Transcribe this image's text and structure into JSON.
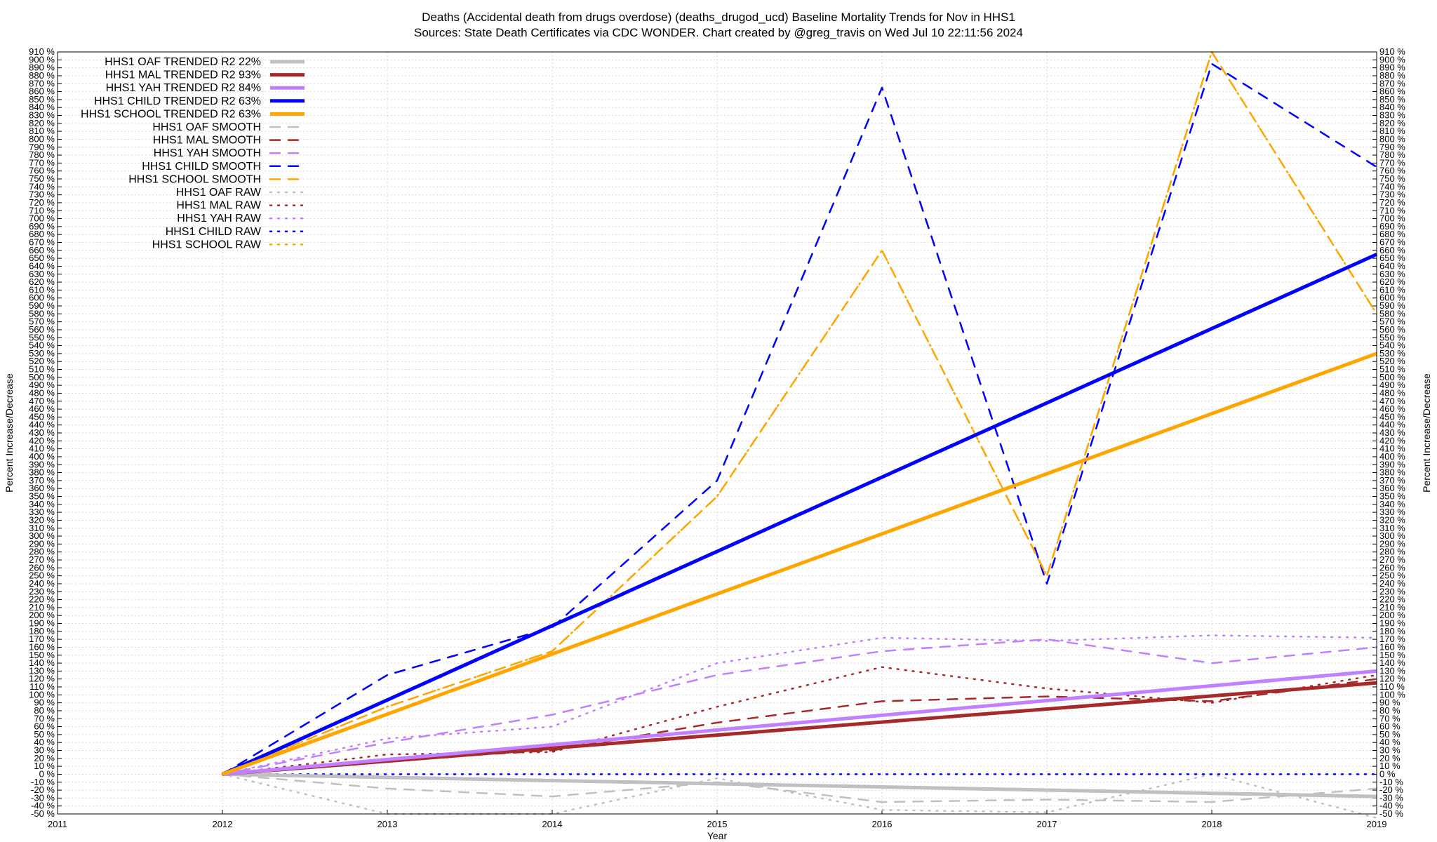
{
  "chart_data": {
    "type": "line",
    "title_line1": "Deaths (Accidental death from drugs overdose) (deaths_drugod_ucd)  Baseline Mortality Trends for Nov in HHS1",
    "title_line2": "Sources: State Death Certificates via CDC WONDER.                Chart created by @greg_travis on Wed Jul 10 22:11:56 2024",
    "xlabel": "Year",
    "ylabel": "Percent Increase/Decrease",
    "ylabel_right": "Percent Increase/Decrease",
    "xlim": [
      2011,
      2019
    ],
    "ylim": [
      -50,
      910
    ],
    "x_ticks": [
      2011,
      2012,
      2013,
      2014,
      2015,
      2016,
      2017,
      2018,
      2019
    ],
    "y_tick_step": 10,
    "y_tick_suffix": " %",
    "grid": true,
    "legend_position": "top-left",
    "colors": {
      "oaf": "#c0c0c0",
      "mal": "#a52a2a",
      "yah": "#c080ff",
      "child": "#0000ff",
      "school": "#ffa500"
    },
    "series": [
      {
        "name": "HHS1 OAF TRENDED R2",
        "r2": "22%",
        "kind": "trend",
        "color_key": "oaf",
        "x": [
          2012,
          2019
        ],
        "y": [
          0,
          -28
        ]
      },
      {
        "name": "HHS1 MAL TRENDED R2",
        "r2": "93%",
        "kind": "trend",
        "color_key": "mal",
        "x": [
          2012,
          2019
        ],
        "y": [
          0,
          115
        ]
      },
      {
        "name": "HHS1 YAH TRENDED R2",
        "r2": "84%",
        "kind": "trend",
        "color_key": "yah",
        "x": [
          2012,
          2019
        ],
        "y": [
          0,
          130
        ]
      },
      {
        "name": "HHS1 CHILD TRENDED R2",
        "r2": "63%",
        "kind": "trend",
        "color_key": "child",
        "x": [
          2012,
          2019
        ],
        "y": [
          0,
          655
        ]
      },
      {
        "name": "HHS1 SCHOOL TRENDED R2",
        "r2": "63%",
        "kind": "trend",
        "color_key": "school",
        "x": [
          2012,
          2019
        ],
        "y": [
          0,
          530
        ]
      },
      {
        "name": "HHS1 OAF SMOOTH",
        "r2": "",
        "kind": "smooth",
        "color_key": "oaf",
        "x": [
          2012,
          2013,
          2014,
          2015,
          2016,
          2017,
          2018,
          2019
        ],
        "y": [
          0,
          -18,
          -28,
          -10,
          -35,
          -32,
          -35,
          -18
        ]
      },
      {
        "name": "HHS1 MAL SMOOTH",
        "r2": "",
        "kind": "smooth",
        "color_key": "mal",
        "x": [
          2012,
          2013,
          2014,
          2015,
          2016,
          2017,
          2018,
          2019
        ],
        "y": [
          0,
          18,
          30,
          65,
          92,
          98,
          92,
          120
        ]
      },
      {
        "name": "HHS1 YAH SMOOTH",
        "r2": "",
        "kind": "smooth",
        "color_key": "yah",
        "x": [
          2012,
          2013,
          2014,
          2015,
          2016,
          2017,
          2018,
          2019
        ],
        "y": [
          0,
          40,
          75,
          125,
          155,
          170,
          140,
          160
        ]
      },
      {
        "name": "HHS1 CHILD SMOOTH",
        "r2": "",
        "kind": "smooth",
        "color_key": "child",
        "x": [
          2012,
          2013,
          2014,
          2015,
          2016,
          2017,
          2018,
          2019
        ],
        "y": [
          0,
          125,
          185,
          370,
          865,
          240,
          895,
          765
        ]
      },
      {
        "name": "HHS1 SCHOOL SMOOTH",
        "r2": "",
        "kind": "smooth",
        "color_key": "school",
        "x": [
          2012,
          2013,
          2014,
          2015,
          2016,
          2017,
          2018,
          2019
        ],
        "y": [
          0,
          85,
          155,
          350,
          660,
          250,
          910,
          580
        ]
      },
      {
        "name": "HHS1 OAF RAW",
        "r2": "",
        "kind": "raw",
        "color_key": "oaf",
        "x": [
          2012,
          2013,
          2014,
          2015,
          2016,
          2017,
          2018,
          2019
        ],
        "y": [
          0,
          -50,
          -50,
          -5,
          -45,
          -48,
          0,
          -55
        ]
      },
      {
        "name": "HHS1 MAL RAW",
        "r2": "",
        "kind": "raw",
        "color_key": "mal",
        "x": [
          2012,
          2013,
          2014,
          2015,
          2016,
          2017,
          2018,
          2019
        ],
        "y": [
          0,
          25,
          28,
          85,
          135,
          108,
          90,
          125
        ]
      },
      {
        "name": "HHS1 YAH RAW",
        "r2": "",
        "kind": "raw",
        "color_key": "yah",
        "x": [
          2012,
          2013,
          2014,
          2015,
          2016,
          2017,
          2018,
          2019
        ],
        "y": [
          0,
          45,
          60,
          140,
          172,
          168,
          175,
          172
        ]
      },
      {
        "name": "HHS1 CHILD RAW",
        "r2": "",
        "kind": "raw",
        "color_key": "child",
        "x": [
          2012,
          2013,
          2014,
          2015,
          2016,
          2017,
          2018,
          2019
        ],
        "y": [
          0,
          0,
          0,
          0,
          0,
          0,
          0,
          0
        ]
      },
      {
        "name": "HHS1 SCHOOL RAW",
        "r2": "",
        "kind": "raw",
        "color_key": "school",
        "x": [
          2012,
          2013,
          2014,
          2015,
          2016,
          2017,
          2018,
          2019
        ],
        "y": [
          0,
          85,
          155,
          350,
          660,
          250,
          910,
          580
        ]
      }
    ]
  }
}
